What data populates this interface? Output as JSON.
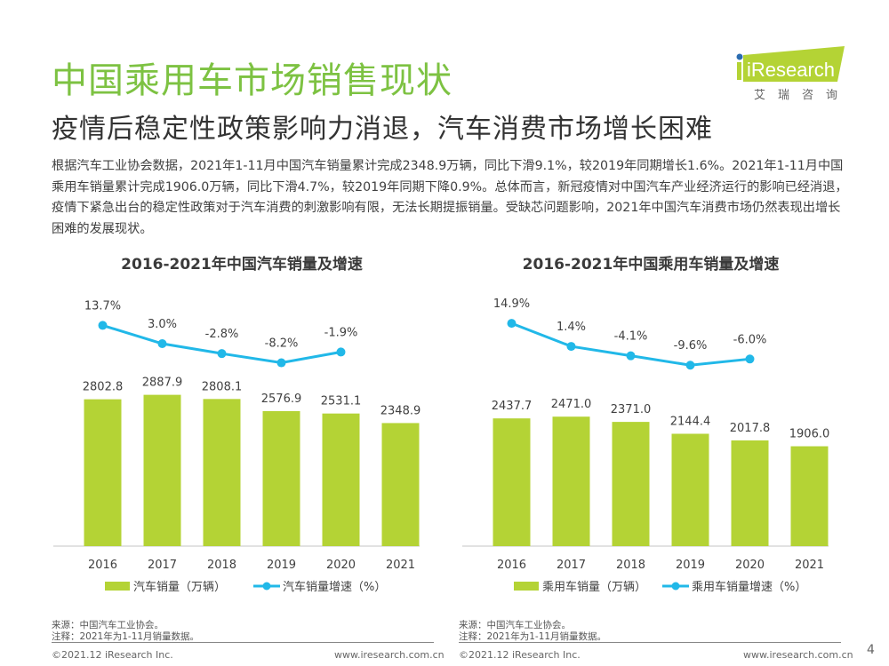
{
  "title": "中国乘用车市场销售现状",
  "subtitle": "疫情后稳定性政策影响力消退，汽车消费市场增长困难",
  "logo": {
    "brand": "iResearch",
    "cn": "艾瑞咨询",
    "accent": "#b4d335",
    "dot": "#2b6cb0"
  },
  "intro": "根据汽车工业协会数据，2021年1-11月中国汽车销量累计完成2348.9万辆，同比下滑9.1%，较2019年同期增长1.6%。2021年1-11月中国乘用车销量累计完成1906.0万辆，同比下滑4.7%，较2019年同期下降0.9%。总体而言，新冠疫情对中国汽车产业经济运行的影响已经消退，疫情下紧急出台的稳定性政策对于汽车消费的刺激影响有限，无法长期提振销量。受缺芯问题影响，2021年中国汽车消费市场仍然表现出增长困难的发展现状。",
  "colors": {
    "bar": "#b4d335",
    "line": "#21b8e8",
    "title": "#7dc242"
  },
  "chart_data": [
    {
      "type": "bar",
      "title": "2016-2021年中国汽车销量及增速",
      "categories": [
        "2016",
        "2017",
        "2018",
        "2019",
        "2020",
        "2021"
      ],
      "series": [
        {
          "name": "汽车销量（万辆）",
          "kind": "bar",
          "values": [
            2802.8,
            2887.9,
            2808.1,
            2576.9,
            2531.1,
            2348.9
          ],
          "labels": [
            "2802.8",
            "2887.9",
            "2808.1",
            "2576.9",
            "2531.1",
            "2348.9"
          ]
        },
        {
          "name": "汽车销量增速（%）",
          "kind": "line",
          "values": [
            13.7,
            3.0,
            -2.8,
            -8.2,
            -1.9,
            null
          ],
          "labels": [
            "13.7%",
            "3.0%",
            "-2.8%",
            "-8.2%",
            "-1.9%",
            ""
          ]
        }
      ],
      "legend": "bottom",
      "grid": false
    },
    {
      "type": "bar",
      "title": "2016-2021年中国乘用车销量及增速",
      "categories": [
        "2016",
        "2017",
        "2018",
        "2019",
        "2020",
        "2021"
      ],
      "series": [
        {
          "name": "乘用车销量（万辆）",
          "kind": "bar",
          "values": [
            2437.7,
            2471.0,
            2371.0,
            2144.4,
            2017.8,
            1906.0
          ],
          "labels": [
            "2437.7",
            "2471.0",
            "2371.0",
            "2144.4",
            "2017.8",
            "1906.0"
          ]
        },
        {
          "name": "乘用车销量增速（%）",
          "kind": "line",
          "values": [
            14.9,
            1.4,
            -4.1,
            -9.6,
            -6.0,
            null
          ],
          "labels": [
            "14.9%",
            "1.4%",
            "-4.1%",
            "-9.6%",
            "-6.0%",
            ""
          ]
        }
      ],
      "legend": "bottom",
      "grid": false
    }
  ],
  "sources": [
    {
      "source": "来源：中国汽车工业协会。",
      "note": "注释：2021年为1-11月销量数据。"
    },
    {
      "source": "来源：中国汽车工业协会。",
      "note": "注释：2021年为1-11月销量数据。"
    }
  ],
  "footer": {
    "copyright": "©2021.12 iResearch Inc.",
    "website": "www.iresearch.com.cn",
    "page": "4"
  }
}
